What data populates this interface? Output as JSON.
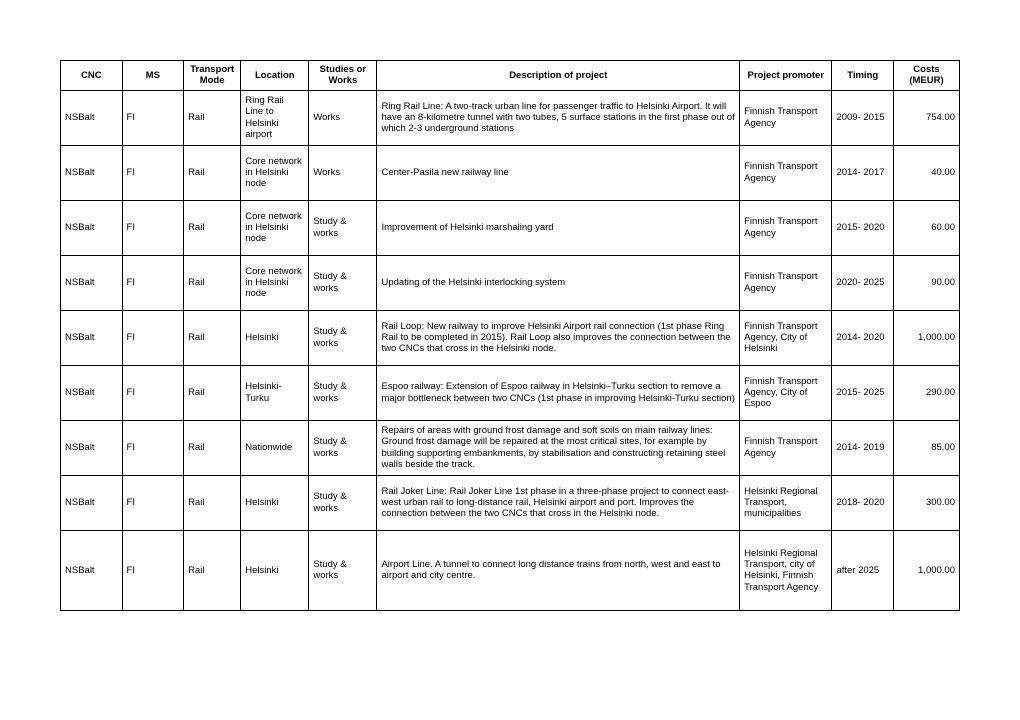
{
  "columns": [
    "CNC",
    "MS",
    "Transport Mode",
    "Location",
    "Studies or Works",
    "Description of project",
    "Project promoter",
    "Timing",
    "Costs (MEUR)"
  ],
  "rows": [
    {
      "cnc": "NSBalt",
      "ms": "FI",
      "mode": "Rail",
      "loc": "Ring Rail Line to Helsinki airport",
      "sw": "Works",
      "desc": "Ring Rail Line: A two-track urban line for  passenger traffic to Helsinki Airport. It will  have an 8-kilometre tunnel with two  tubes, 5 surface stations in the first phase  out of which 2-3 underground stations",
      "prom": "Finnish  Transport Agency",
      "tim": "2009- 2015",
      "cost": "754.00"
    },
    {
      "cnc": "NSBalt",
      "ms": "FI",
      "mode": "Rail",
      "loc": "Core network  in Helsinki node",
      "sw": "Works",
      "desc": "Center-Pasila new railway line",
      "prom": "Finnish  Transport Agency",
      "tim": "2014- 2017",
      "cost": "40.00"
    },
    {
      "cnc": "NSBalt",
      "ms": "FI",
      "mode": "Rail",
      "loc": "Core network  in Helsinki node",
      "sw": "Study &  works",
      "desc": "Improvement of Helsinki marshaling yard",
      "prom": "Finnish  Transport Agency",
      "tim": "2015- 2020",
      "cost": "60.00"
    },
    {
      "cnc": "NSBalt",
      "ms": "FI",
      "mode": "Rail",
      "loc": "Core network  in Helsinki node",
      "sw": "Study &  works",
      "desc": "Updating of the Helsinki interlocking  system",
      "prom": "Finnish  Transport Agency",
      "tim": "2020- 2025",
      "cost": "90.00"
    },
    {
      "cnc": "NSBalt",
      "ms": "FI",
      "mode": "Rail",
      "loc": "Helsinki",
      "sw": "Study &  works",
      "desc": "Rail Loop: New railway to improve  Helsinki Airport rail connection (1st phase  Ring Rail to be completed in 2015). Rail  Loop also improves the connection  between the two CNCs that cross in the  Helsinki node.",
      "prom": "Finnish  Transport Agency,  City  of Helsinki",
      "tim": "2014- 2020",
      "cost": "1,000.00"
    },
    {
      "cnc": "NSBalt",
      "ms": "FI",
      "mode": "Rail",
      "loc": "Helsinki-Turku",
      "sw": "Study &  works",
      "desc": "Espoo railway: Extension of Espoo railway  in Helsinki–Turku section to remove a  major bottleneck between two CNCs (1st  phase in improving Helsinki-Turku section)",
      "prom": "Finnish  Transport Agency,  City  of Espoo",
      "tim": "2015- 2025",
      "cost": "290.00"
    },
    {
      "cnc": "NSBalt",
      "ms": "FI",
      "mode": "Rail",
      "loc": "Nationwide",
      "sw": "Study &  works",
      "desc": "Repairs of areas with ground frost damage  and soft soils on main railway lines:  Ground frost damage will be repaired at  the most critical sites, for example by  building supporting embankments, by  stabilisation and constructing retaining  steel walls beside the track.",
      "prom": "Finnish  Transport Agency",
      "tim": "2014- 2019",
      "cost": "85.00"
    },
    {
      "cnc": "NSBalt",
      "ms": "FI",
      "mode": "Rail",
      "loc": "Helsinki",
      "sw": "Study &  works",
      "desc": "Rail Joker Line: Rail Joker Line 1st phase in  a three-phase project to connect east-west urban rail to long-distance rail,  Helsinki airport and port. Improves the  connection between the two CNCs that  cross in the Helsinki node.",
      "prom": "Helsinki  Regional Transport, municipalities",
      "tim": "2018- 2020",
      "cost": "300.00"
    },
    {
      "cnc": "NSBalt",
      "ms": "FI",
      "mode": "Rail",
      "loc": "Helsinki",
      "sw": "Study &  works",
      "desc": "Airport Line. A tunnel to connect long  distance trains from north, west and east  to airport and city centre.",
      "prom": "Helsinki  Regional Transport,  city  of Helsinki,  Finnish Transport Agency",
      "tim": "after  2025",
      "cost": "1,000.00",
      "tall": true
    }
  ]
}
